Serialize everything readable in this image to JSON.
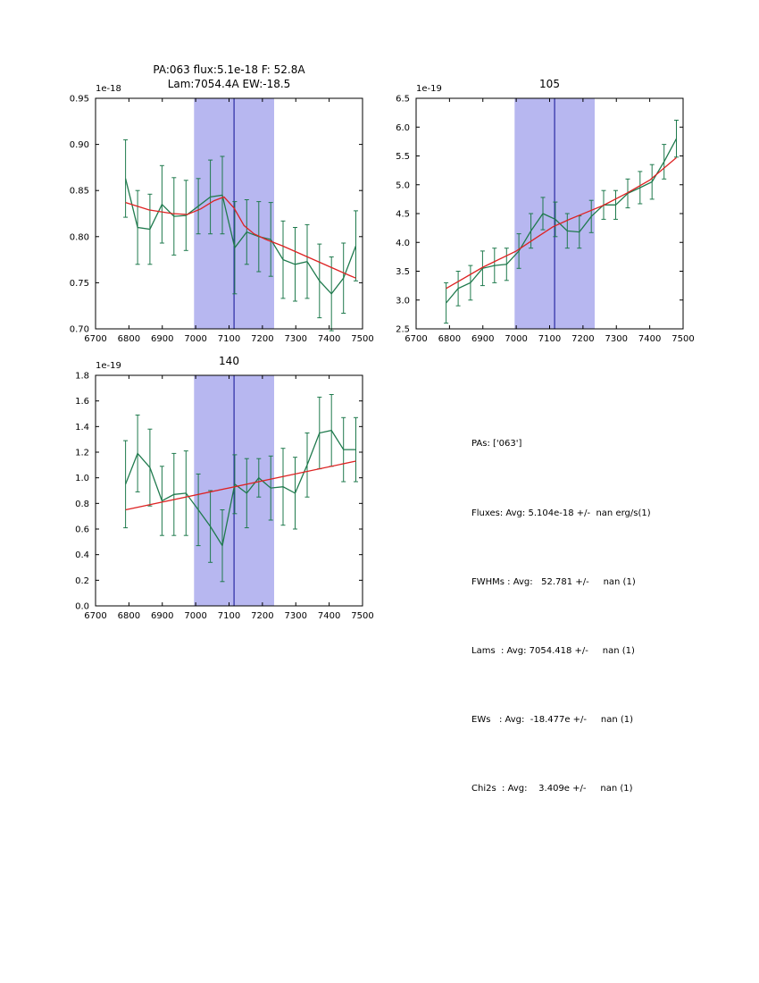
{
  "colors": {
    "data_line": "#1f7a4d",
    "fit_line": "#dd2222",
    "band_fill": "#b7b7f0",
    "vline": "#2929a3",
    "axis": "#000000"
  },
  "info": {
    "lines": [
      "PAs: ['063']",
      "Fluxes: Avg: 5.104e-18 +/-  nan erg/s(1)",
      "FWHMs : Avg:   52.781 +/-     nan (1)",
      "Lams  : Avg: 7054.418 +/-     nan (1)",
      "EWs   : Avg:  -18.477e +/-     nan (1)",
      "Chi2s  : Avg:    3.409e +/-     nan (1)"
    ]
  },
  "chart_data": [
    {
      "id": "pa063",
      "type": "line",
      "title_lines": [
        "PA:063 flux:5.1e-18 F: 52.8A",
        "Lam:7054.4A EW:-18.5"
      ],
      "offset_label": "1e-18",
      "xlim": [
        6700,
        7500
      ],
      "ylim": [
        0.7,
        0.95
      ],
      "x_ticks": [
        6700,
        6800,
        6900,
        7000,
        7100,
        7200,
        7300,
        7400,
        7500
      ],
      "y_ticks": [
        0.7,
        0.75,
        0.8,
        0.85,
        0.9,
        0.95
      ],
      "y_tick_labels": [
        "0.70",
        "0.75",
        "0.80",
        "0.85",
        "0.90",
        "0.95"
      ],
      "band": [
        6995,
        7235
      ],
      "vline": 7115,
      "series": [
        {
          "name": "spectrum-data",
          "role": "data",
          "x": [
            6790,
            6826,
            6863,
            6899,
            6935,
            6971,
            7008,
            7044,
            7080,
            7117,
            7153,
            7189,
            7225,
            7262,
            7298,
            7334,
            7371,
            7407,
            7443,
            7480
          ],
          "y": [
            0.863,
            0.81,
            0.808,
            0.835,
            0.822,
            0.823,
            0.833,
            0.843,
            0.845,
            0.788,
            0.805,
            0.8,
            0.797,
            0.775,
            0.77,
            0.773,
            0.752,
            0.738,
            0.755,
            0.79
          ],
          "yerr": [
            0.042,
            0.04,
            0.038,
            0.042,
            0.042,
            0.038,
            0.03,
            0.04,
            0.042,
            0.05,
            0.035,
            0.038,
            0.04,
            0.042,
            0.04,
            0.04,
            0.04,
            0.04,
            0.038,
            0.038
          ]
        },
        {
          "name": "model-fit",
          "role": "fit",
          "x": [
            6790,
            6860,
            6930,
            6975,
            7015,
            7055,
            7085,
            7115,
            7145,
            7175,
            7210,
            7260,
            7310,
            7360,
            7410,
            7460,
            7480
          ],
          "y": [
            0.837,
            0.829,
            0.825,
            0.824,
            0.83,
            0.839,
            0.843,
            0.831,
            0.812,
            0.803,
            0.797,
            0.79,
            0.782,
            0.774,
            0.766,
            0.758,
            0.755
          ]
        }
      ]
    },
    {
      "id": "pa105",
      "type": "line",
      "title_lines": [
        "105"
      ],
      "offset_label": "1e-19",
      "xlim": [
        6700,
        7500
      ],
      "ylim": [
        2.5,
        6.5
      ],
      "x_ticks": [
        6700,
        6800,
        6900,
        7000,
        7100,
        7200,
        7300,
        7400,
        7500
      ],
      "y_ticks": [
        2.5,
        3.0,
        3.5,
        4.0,
        4.5,
        5.0,
        5.5,
        6.0,
        6.5
      ],
      "y_tick_labels": [
        "2.5",
        "3.0",
        "3.5",
        "4.0",
        "4.5",
        "5.0",
        "5.5",
        "6.0",
        "6.5"
      ],
      "band": [
        6995,
        7235
      ],
      "vline": 7115,
      "series": [
        {
          "name": "spectrum-data",
          "role": "data",
          "x": [
            6790,
            6826,
            6863,
            6899,
            6935,
            6971,
            7008,
            7044,
            7080,
            7117,
            7153,
            7189,
            7225,
            7262,
            7298,
            7334,
            7371,
            7407,
            7443,
            7480
          ],
          "y": [
            2.95,
            3.2,
            3.3,
            3.55,
            3.6,
            3.62,
            3.85,
            4.2,
            4.5,
            4.4,
            4.2,
            4.18,
            4.45,
            4.65,
            4.65,
            4.85,
            4.95,
            5.05,
            5.4,
            5.8
          ],
          "yerr": [
            0.35,
            0.3,
            0.3,
            0.3,
            0.3,
            0.28,
            0.3,
            0.3,
            0.28,
            0.3,
            0.3,
            0.28,
            0.28,
            0.25,
            0.25,
            0.25,
            0.28,
            0.3,
            0.3,
            0.32
          ]
        },
        {
          "name": "model-fit",
          "role": "fit",
          "x": [
            6790,
            6900,
            7000,
            7060,
            7110,
            7160,
            7210,
            7260,
            7330,
            7400,
            7480
          ],
          "y": [
            3.2,
            3.57,
            3.85,
            4.08,
            4.27,
            4.4,
            4.52,
            4.64,
            4.85,
            5.08,
            5.47
          ]
        }
      ]
    },
    {
      "id": "pa140",
      "type": "line",
      "title_lines": [
        "140"
      ],
      "offset_label": "1e-19",
      "xlim": [
        6700,
        7500
      ],
      "ylim": [
        0.0,
        1.8
      ],
      "x_ticks": [
        6700,
        6800,
        6900,
        7000,
        7100,
        7200,
        7300,
        7400,
        7500
      ],
      "y_ticks": [
        0.0,
        0.2,
        0.4,
        0.6,
        0.8,
        1.0,
        1.2,
        1.4,
        1.6,
        1.8
      ],
      "y_tick_labels": [
        "0.0",
        "0.2",
        "0.4",
        "0.6",
        "0.8",
        "1.0",
        "1.2",
        "1.4",
        "1.6",
        "1.8"
      ],
      "band": [
        6995,
        7235
      ],
      "vline": 7115,
      "series": [
        {
          "name": "spectrum-data",
          "role": "data",
          "x": [
            6790,
            6826,
            6863,
            6899,
            6935,
            6971,
            7008,
            7044,
            7080,
            7117,
            7153,
            7189,
            7225,
            7262,
            7298,
            7334,
            7371,
            7407,
            7443,
            7480
          ],
          "y": [
            0.95,
            1.19,
            1.08,
            0.82,
            0.87,
            0.88,
            0.75,
            0.62,
            0.47,
            0.95,
            0.88,
            1.0,
            0.92,
            0.93,
            0.88,
            1.1,
            1.35,
            1.37,
            1.22,
            1.22
          ],
          "yerr": [
            0.34,
            0.3,
            0.3,
            0.27,
            0.32,
            0.33,
            0.28,
            0.28,
            0.28,
            0.23,
            0.27,
            0.15,
            0.25,
            0.3,
            0.28,
            0.25,
            0.28,
            0.28,
            0.25,
            0.25
          ]
        },
        {
          "name": "model-fit",
          "role": "fit",
          "x": [
            6790,
            7480
          ],
          "y": [
            0.75,
            1.13
          ]
        }
      ]
    }
  ]
}
